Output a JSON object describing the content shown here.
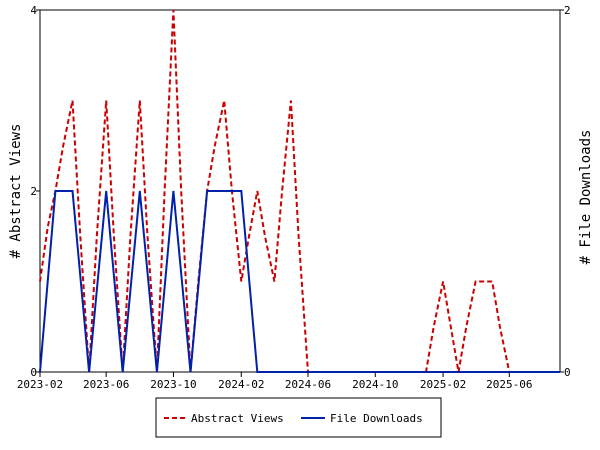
{
  "chart_data": {
    "type": "line",
    "x_start": "2023-02",
    "x_end": "2025-09",
    "x_ticks": [
      "2023-02",
      "2023-06",
      "2023-10",
      "2024-02",
      "2024-06",
      "2024-10",
      "2025-02",
      "2025-06"
    ],
    "left_axis": {
      "label": "# Abstract Views",
      "ylim": [
        0,
        4
      ],
      "ticks": [
        "0",
        "2",
        "4"
      ]
    },
    "right_axis": {
      "label": "# File Downloads",
      "ylim": [
        0,
        2
      ],
      "ticks": [
        "0",
        "2"
      ]
    },
    "grid": false,
    "legend_placement": "bottom-center",
    "series": [
      {
        "name": "Abstract Views",
        "axis": "left",
        "color": "#cc0000",
        "style": "dashed",
        "points": [
          [
            "2023-02-01",
            1
          ],
          [
            "2023-02-15",
            1.6
          ],
          [
            "2023-03-01",
            2
          ],
          [
            "2023-03-15",
            2.5
          ],
          [
            "2023-04-01",
            3
          ],
          [
            "2023-04-15",
            1.5
          ],
          [
            "2023-05-01",
            0
          ],
          [
            "2023-05-15",
            1.5
          ],
          [
            "2023-06-01",
            3
          ],
          [
            "2023-06-15",
            1.5
          ],
          [
            "2023-07-01",
            0
          ],
          [
            "2023-07-15",
            1.5
          ],
          [
            "2023-08-01",
            3
          ],
          [
            "2023-08-15",
            1.5
          ],
          [
            "2023-09-01",
            0
          ],
          [
            "2023-09-15",
            2
          ],
          [
            "2023-10-01",
            4
          ],
          [
            "2023-10-15",
            2
          ],
          [
            "2023-11-01",
            0
          ],
          [
            "2023-11-15",
            1
          ],
          [
            "2023-12-01",
            2
          ],
          [
            "2023-12-15",
            2.5
          ],
          [
            "2024-01-01",
            3
          ],
          [
            "2024-01-15",
            2
          ],
          [
            "2024-02-01",
            1
          ],
          [
            "2024-02-15",
            1.5
          ],
          [
            "2024-03-01",
            2
          ],
          [
            "2024-03-15",
            1.5
          ],
          [
            "2024-04-01",
            1
          ],
          [
            "2024-04-15",
            2
          ],
          [
            "2024-05-01",
            3
          ],
          [
            "2024-05-15",
            1.5
          ],
          [
            "2024-06-01",
            0
          ],
          [
            "2025-01-01",
            0
          ],
          [
            "2025-01-15",
            0.5
          ],
          [
            "2025-02-01",
            1
          ],
          [
            "2025-02-15",
            0.5
          ],
          [
            "2025-03-01",
            0
          ],
          [
            "2025-03-15",
            0.5
          ],
          [
            "2025-04-01",
            1
          ],
          [
            "2025-05-01",
            1
          ],
          [
            "2025-05-15",
            0.5
          ],
          [
            "2025-06-01",
            0
          ]
        ]
      },
      {
        "name": "File Downloads",
        "axis": "right",
        "color": "#0022aa",
        "style": "solid",
        "points": [
          [
            "2023-02-01",
            0
          ],
          [
            "2023-03-01",
            1
          ],
          [
            "2023-04-01",
            1
          ],
          [
            "2023-05-01",
            0
          ],
          [
            "2023-06-01",
            1
          ],
          [
            "2023-07-01",
            0
          ],
          [
            "2023-08-01",
            1
          ],
          [
            "2023-09-01",
            0
          ],
          [
            "2023-10-01",
            1
          ],
          [
            "2023-11-01",
            0
          ],
          [
            "2023-12-01",
            1
          ],
          [
            "2024-01-01",
            1
          ],
          [
            "2024-02-01",
            1
          ],
          [
            "2024-03-01",
            0
          ],
          [
            "2025-09-01",
            0
          ]
        ]
      }
    ]
  }
}
